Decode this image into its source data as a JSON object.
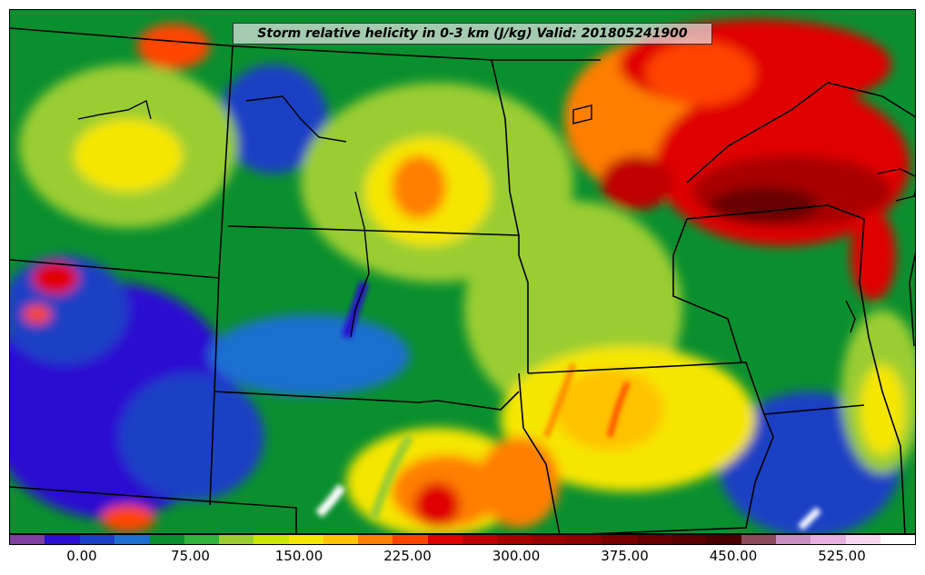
{
  "title": "Storm relative helicity in 0-3 km (J/kg) Valid: 201805241900",
  "colorbar": {
    "colors": [
      "#7e3fa0",
      "#2a0fd0",
      "#1b3fc4",
      "#1f6fd0",
      "#0a8f2f",
      "#2fb33a",
      "#9acd32",
      "#c8e800",
      "#f5e600",
      "#ffc300",
      "#ff7f00",
      "#ff4500",
      "#e00000",
      "#c00000",
      "#a80000",
      "#960000",
      "#8a0000",
      "#7a0000",
      "#680000",
      "#5a0000",
      "#4b0000",
      "#8b4a5a",
      "#c890c0",
      "#e8b0e0",
      "#f8d8f0",
      "#ffffff"
    ],
    "labels": [
      "0.00",
      "75.00",
      "150.00",
      "225.00",
      "300.00",
      "375.00",
      "450.00",
      "525.00"
    ]
  }
}
